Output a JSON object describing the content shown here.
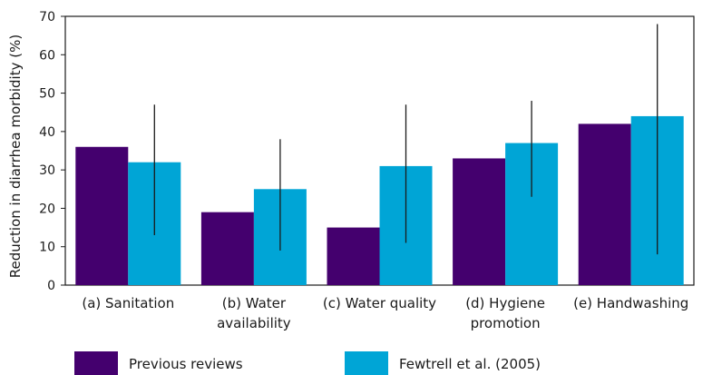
{
  "chart_data": {
    "type": "bar",
    "ylabel": "Reduction in diarrhea morbidity (%)",
    "ylim": [
      0,
      70
    ],
    "yticks": [
      0,
      10,
      20,
      30,
      40,
      50,
      60,
      70
    ],
    "grid": false,
    "legend_position": "bottom",
    "categories": [
      [
        "(a) Sanitation"
      ],
      [
        "(b) Water",
        "availability"
      ],
      [
        "(c) Water quality"
      ],
      [
        "(d) Hygiene",
        "promotion"
      ],
      [
        "(e) Handwashing"
      ]
    ],
    "series": [
      {
        "name": "Previous reviews",
        "color": "#44006e",
        "values": [
          36,
          19,
          15,
          33,
          42
        ]
      },
      {
        "name": "Fewtrell et al. (2005)",
        "color": "#00a5d6",
        "values": [
          32,
          25,
          31,
          37,
          44
        ],
        "error_low": [
          13,
          9,
          11,
          23,
          8
        ],
        "error_high": [
          47,
          38,
          47,
          48,
          68
        ]
      }
    ]
  }
}
